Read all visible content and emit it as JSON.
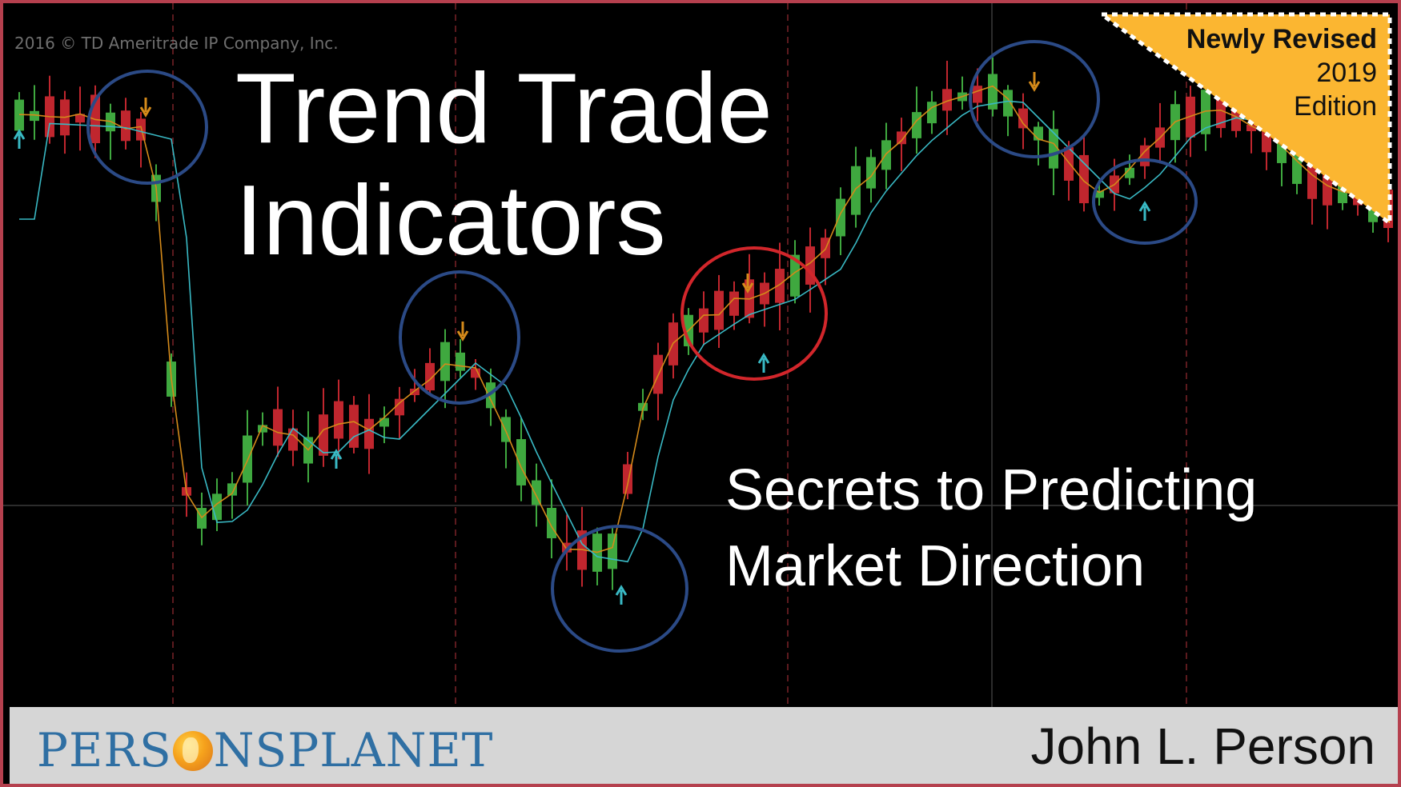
{
  "copyright": "2016 © TD Ameritrade IP Company, Inc.",
  "title": {
    "line1": "Trend Trade",
    "line2": "Indicators"
  },
  "subtitle": {
    "line1": "Secrets to Predicting",
    "line2": "Market Direction"
  },
  "badge": {
    "line1": "Newly Revised",
    "line2": "2019",
    "line3": "Edition",
    "color": "#fbb631"
  },
  "footer": {
    "logo_part1": "PERS",
    "logo_part2": "NSPLANET",
    "logo_icon": "globe-icon",
    "author": "John L. Person"
  },
  "colors": {
    "up_candle": "#3fa83f",
    "down_candle": "#c0262e",
    "fast_ma": "#d48a1a",
    "slow_ma": "#39b9c4",
    "marker_circle": "#2b4a86",
    "highlight_circle": "#d2262b",
    "frame": "#b5404e"
  }
}
